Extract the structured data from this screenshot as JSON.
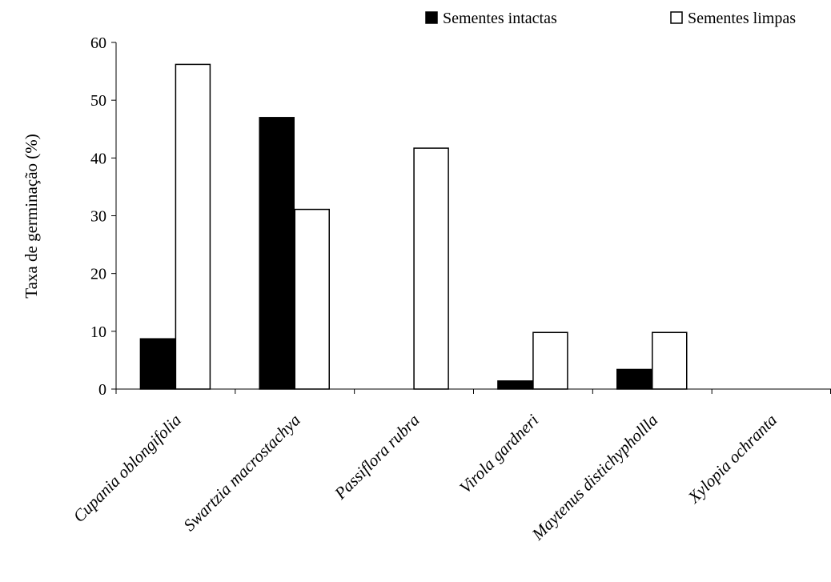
{
  "chart_data": {
    "type": "bar",
    "title": "",
    "xlabel": "",
    "ylabel": "Taxa de germinação  (%)",
    "ylim": [
      0,
      60
    ],
    "yticks": [
      0,
      10,
      20,
      30,
      40,
      50,
      60
    ],
    "grid": false,
    "legend_position": "top-right",
    "categories": [
      "Cupania oblongifolia",
      "Swartzia macrostachya",
      "Passiflora rubra",
      "Virola gardneri",
      "Maytenus distichyphollla",
      "Xylopia ochranta"
    ],
    "series": [
      {
        "name": "Sementes intactas",
        "color": "#000000",
        "values": [
          8.7,
          47.0,
          0,
          1.4,
          3.4,
          0
        ]
      },
      {
        "name": "Sementes limpas",
        "color": "#ffffff",
        "values": [
          56.2,
          31.1,
          41.7,
          9.8,
          9.8,
          0
        ]
      }
    ]
  }
}
